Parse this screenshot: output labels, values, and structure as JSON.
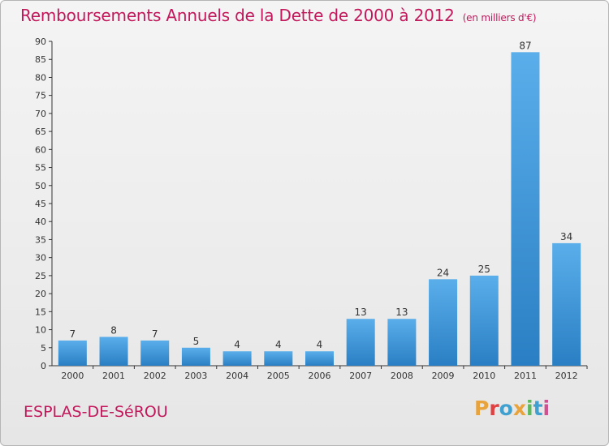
{
  "header": {
    "title": "Remboursements Annuels de la Dette de 2000 à 2012",
    "unit": "(en milliers d'€)"
  },
  "footer": {
    "commune": "ESPLAS-DE-SéROU",
    "logo_text": "Proxiti",
    "logo_colors": [
      "#e8a33c",
      "#e04040",
      "#40a0d0",
      "#e8a33c",
      "#5cb85c",
      "#40a0d0",
      "#d05090"
    ]
  },
  "colors": {
    "bar_top": "#5aaeea",
    "bar_bottom": "#2a7fc4",
    "accent": "#c2185b"
  },
  "chart_data": {
    "type": "bar",
    "categories": [
      "2000",
      "2001",
      "2002",
      "2003",
      "2004",
      "2005",
      "2006",
      "2007",
      "2008",
      "2009",
      "2010",
      "2011",
      "2012"
    ],
    "values": [
      7,
      8,
      7,
      5,
      4,
      4,
      4,
      13,
      13,
      24,
      25,
      87,
      34
    ],
    "ylim": [
      0,
      90
    ],
    "yticks": [
      0,
      5,
      10,
      15,
      20,
      25,
      30,
      35,
      40,
      45,
      50,
      55,
      60,
      65,
      70,
      75,
      80,
      85,
      90
    ],
    "grid": false,
    "data_labels": true
  }
}
